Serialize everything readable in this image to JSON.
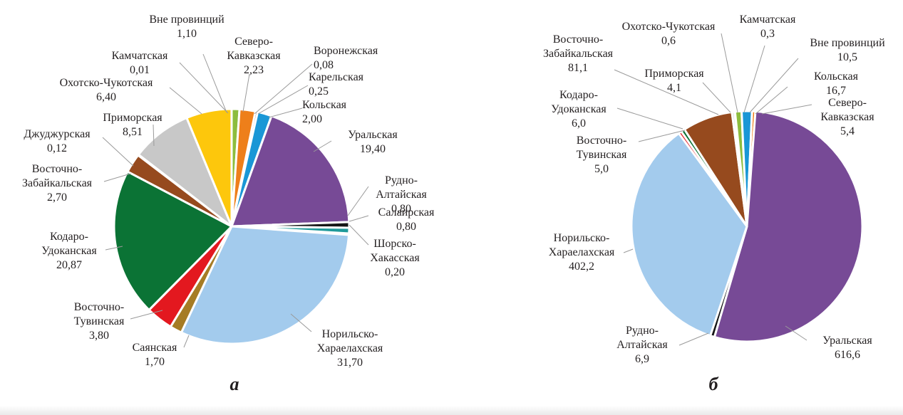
{
  "chart_data": [
    {
      "type": "pie",
      "panel_label": "а",
      "slices": [
        {
          "name": "Вне провинций",
          "value_label": "1,10",
          "value": 1.1,
          "color": "#8dbd3e"
        },
        {
          "name": "Северо-Кавказская",
          "value_label": "2,23",
          "value": 2.23,
          "color": "#ee7f1a"
        },
        {
          "name": "Воронежская",
          "value_label": "0,08",
          "value": 0.08,
          "color": "#f2efe2"
        },
        {
          "name": "Карельская",
          "value_label": "0,25",
          "value": 0.25,
          "color": "#4b4b4b"
        },
        {
          "name": "Кольская",
          "value_label": "2,00",
          "value": 2.0,
          "color": "#1a97d6"
        },
        {
          "name": "Уральская",
          "value_label": "19,40",
          "value": 19.4,
          "color": "#774a96"
        },
        {
          "name": "Рудно-Алтайская",
          "value_label": "0,80",
          "value": 0.8,
          "color": "#161616"
        },
        {
          "name": "Салаирская",
          "value_label": "0,80",
          "value": 0.8,
          "color": "#1f9a9a"
        },
        {
          "name": "Шорско-Хакасская",
          "value_label": "0,20",
          "value": 0.2,
          "color": "#ffe74d"
        },
        {
          "name": "Норильско-Хараелахская",
          "value_label": "31,70",
          "value": 31.7,
          "color": "#a3cbed"
        },
        {
          "name": "Саянская",
          "value_label": "1,70",
          "value": 1.7,
          "color": "#a67c24"
        },
        {
          "name": "Восточно-Тувинская",
          "value_label": "3,80",
          "value": 3.8,
          "color": "#e3181f"
        },
        {
          "name": "Кодаро-Удоканская",
          "value_label": "20,87",
          "value": 20.87,
          "color": "#0b7335"
        },
        {
          "name": "Восточно-Забайкальская",
          "value_label": "2,70",
          "value": 2.7,
          "color": "#964a1e"
        },
        {
          "name": "Джуджурская",
          "value_label": "0,12",
          "value": 0.12,
          "color": "#f7e9b8"
        },
        {
          "name": "Приморская",
          "value_label": "8,51",
          "value": 8.51,
          "color": "#c8c8c8"
        },
        {
          "name": "Охотско-Чукотская",
          "value_label": "6,40",
          "value": 6.4,
          "color": "#fdc70c"
        },
        {
          "name": "Камчатская",
          "value_label": "0,01",
          "value": 0.01,
          "color": "#8a5a2b"
        }
      ]
    },
    {
      "type": "pie",
      "panel_label": "б",
      "slices": [
        {
          "name": "Охотско-Чукотская",
          "value_label": "0,6",
          "value": 0.6,
          "color": "#fdc70c"
        },
        {
          "name": "Камчатская",
          "value_label": "0,3",
          "value": 0.3,
          "color": "#8a5a2b"
        },
        {
          "name": "Вне провинций",
          "value_label": "10,5",
          "value": 10.5,
          "color": "#8dbd3e"
        },
        {
          "name": "Кольская",
          "value_label": "16,7",
          "value": 16.7,
          "color": "#1a97d6"
        },
        {
          "name": "Северо-Кавказская",
          "value_label": "5,4",
          "value": 5.4,
          "color": "#ee7f1a"
        },
        {
          "name": "Уральская",
          "value_label": "616,6",
          "value": 616.6,
          "color": "#774a96"
        },
        {
          "name": "Рудно-Алтайская",
          "value_label": "6,9",
          "value": 6.9,
          "color": "#161616"
        },
        {
          "name": "Норильско-Хараелахская",
          "value_label": "402,2",
          "value": 402.2,
          "color": "#a3cbed"
        },
        {
          "name": "Восточно-Тувинская",
          "value_label": "5,0",
          "value": 5.0,
          "color": "#e3181f"
        },
        {
          "name": "Кодаро-Удоканская",
          "value_label": "6,0",
          "value": 6.0,
          "color": "#0b7335"
        },
        {
          "name": "Восточно-Забайкальская",
          "value_label": "81,1",
          "value": 81.1,
          "color": "#964a1e"
        },
        {
          "name": "Приморская",
          "value_label": "4,1",
          "value": 4.1,
          "color": "#c8c8c8"
        }
      ]
    }
  ]
}
